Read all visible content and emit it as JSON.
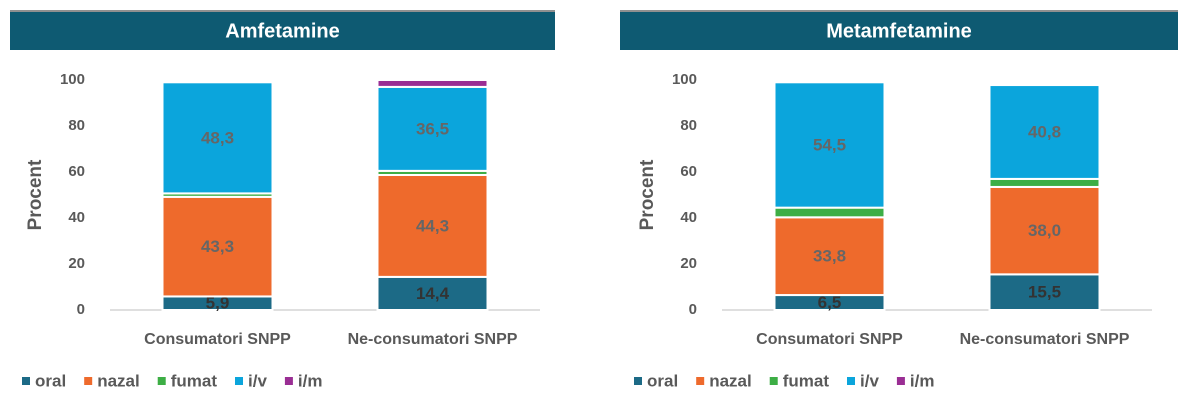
{
  "chart_data": [
    {
      "type": "bar",
      "stacked": true,
      "title": "Amfetamine",
      "y_label": "Procent",
      "categories": [
        "Consumatori SNPP",
        "Ne-consumatori SNPP"
      ],
      "ylim": [
        0,
        100
      ],
      "yticks": [
        0,
        20,
        40,
        60,
        80,
        100
      ],
      "series": [
        {
          "name": "oral",
          "color": "#1c6a86",
          "values": [
            5.9,
            14.4
          ],
          "value_labels": [
            "5,9",
            "14,4"
          ]
        },
        {
          "name": "nazal",
          "color": "#ee6a2c",
          "values": [
            43.3,
            44.3
          ],
          "value_labels": [
            "43,3",
            "44,3"
          ]
        },
        {
          "name": "fumat",
          "color": "#3dae45",
          "values": [
            1.5,
            1.8
          ]
        },
        {
          "name": "i/v",
          "color": "#0ba5dc",
          "values": [
            48.3,
            36.5
          ],
          "value_labels": [
            "48,3",
            "36,5"
          ]
        },
        {
          "name": "i/m",
          "color": "#9a2e94",
          "values": [
            0,
            3.0
          ]
        }
      ]
    },
    {
      "type": "bar",
      "stacked": true,
      "title": "Metamfetamine",
      "y_label": "Procent",
      "categories": [
        "Consumatori SNPP",
        "Ne-consumatori SNPP"
      ],
      "ylim": [
        0,
        100
      ],
      "yticks": [
        0,
        20,
        40,
        60,
        80,
        100
      ],
      "series": [
        {
          "name": "oral",
          "color": "#1c6a86",
          "values": [
            6.5,
            15.5
          ],
          "value_labels": [
            "6,5",
            "15,5"
          ]
        },
        {
          "name": "nazal",
          "color": "#ee6a2c",
          "values": [
            33.8,
            38.0
          ],
          "value_labels": [
            "33,8",
            "38,0"
          ]
        },
        {
          "name": "fumat",
          "color": "#3dae45",
          "values": [
            4.2,
            3.5
          ]
        },
        {
          "name": "i/v",
          "color": "#0ba5dc",
          "values": [
            54.5,
            40.8
          ],
          "value_labels": [
            "54,5",
            "40,8"
          ]
        },
        {
          "name": "i/m",
          "color": "#9a2e94",
          "values": [
            0,
            0
          ]
        }
      ]
    }
  ]
}
